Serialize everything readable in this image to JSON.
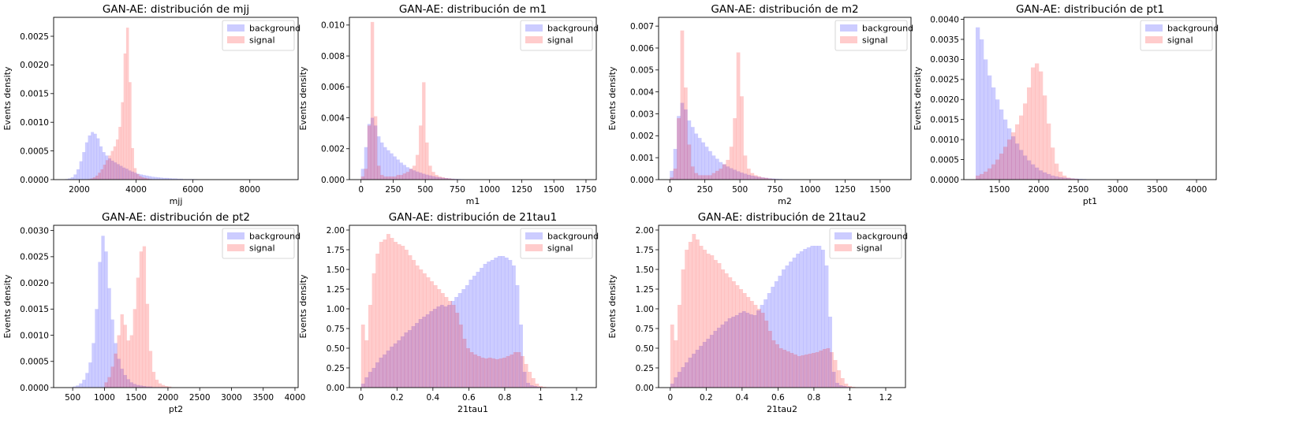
{
  "colors": {
    "background": "#0000ff",
    "signal": "#ff0000",
    "alpha": 0.2
  },
  "chart_data": [
    {
      "type": "histogram",
      "title": "GAN-AE: distribución de mjj",
      "xlabel": "mjj",
      "ylabel": "Events density",
      "xlim": [
        1100,
        9700
      ],
      "ylim": [
        0,
        0.00283
      ],
      "xticks": [
        2000,
        4000,
        6000,
        8000
      ],
      "yticks": [
        0.0,
        0.0005,
        0.001,
        0.0015,
        0.002,
        0.0025
      ],
      "yticklabels": [
        "0.0000",
        "0.0005",
        "0.0010",
        "0.0015",
        "0.0020",
        "0.0025"
      ],
      "legend": "top-right",
      "series": [
        {
          "name": "background",
          "color": "#0000ff",
          "edges": [
            1500,
            6550
          ],
          "values": [
            1e-05,
            2e-05,
            4e-05,
            9e-05,
            0.00018,
            0.00032,
            0.00048,
            0.00065,
            0.00077,
            0.00083,
            0.0008,
            0.00072,
            0.00058,
            0.00048,
            0.00042,
            0.00037,
            0.00033,
            0.0003,
            0.00027,
            0.00024,
            0.00021,
            0.00019,
            0.00016,
            0.00014,
            0.00012,
            0.0001,
            9e-05,
            8e-05,
            7e-05,
            6e-05,
            5e-05,
            4.5e-05,
            4e-05,
            3.5e-05,
            3e-05,
            3e-05,
            2.5e-05,
            2e-05,
            2e-05,
            1.5e-05,
            1.5e-05,
            1e-05,
            1e-05,
            1e-05,
            1e-05,
            8e-06,
            6e-06,
            5e-06,
            4e-06,
            3e-06
          ]
        },
        {
          "name": "signal",
          "color": "#ff0000",
          "edges": [
            2300,
            4550
          ],
          "values": [
            1e-05,
            2e-05,
            4e-05,
            7e-05,
            0.00012,
            0.00018,
            0.00026,
            0.00034,
            0.00042,
            0.0005,
            0.00058,
            0.0007,
            0.00092,
            0.00135,
            0.0022,
            0.00265,
            0.0017,
            0.00055,
            0.0002,
            0.0001,
            6e-05,
            4e-05,
            3e-05,
            2e-05,
            1e-05
          ]
        }
      ]
    },
    {
      "type": "histogram",
      "title": "GAN-AE: distribución de m1",
      "xlabel": "m1",
      "ylabel": "Events density",
      "xlim": [
        -90,
        1830
      ],
      "ylim": [
        0,
        0.0105
      ],
      "xticks": [
        0,
        250,
        500,
        750,
        1000,
        1250,
        1500,
        1750
      ],
      "yticks": [
        0.0,
        0.002,
        0.004,
        0.006,
        0.008,
        0.01
      ],
      "yticklabels": [
        "0.000",
        "0.002",
        "0.004",
        "0.006",
        "0.008",
        "0.010"
      ],
      "legend": "top-right",
      "series": [
        {
          "name": "background",
          "color": "#0000ff",
          "edges": [
            0,
            1000
          ],
          "values": [
            0.0007,
            0.0021,
            0.0036,
            0.004,
            0.0035,
            0.0028,
            0.0024,
            0.0021,
            0.0019,
            0.0017,
            0.0015,
            0.0013,
            0.0011,
            0.00095,
            0.0008,
            0.0007,
            0.0006,
            0.00052,
            0.00045,
            0.00038,
            0.00032,
            0.00027,
            0.00022,
            0.00018,
            0.00015,
            0.00012,
            0.0001,
            8e-05,
            6e-05,
            5e-05,
            4e-05,
            3e-05,
            2e-05,
            2e-05,
            1e-05,
            1e-05,
            1e-05,
            5e-06,
            5e-06,
            5e-06
          ]
        },
        {
          "name": "signal",
          "color": "#ff0000",
          "edges": [
            0,
            775
          ],
          "values": [
            0.0002,
            0.0007,
            0.0035,
            0.0102,
            0.0041,
            0.0009,
            0.0003,
            0.0002,
            0.0002,
            0.0002,
            0.0002,
            0.0003,
            0.0003,
            0.0004,
            0.0005,
            0.0007,
            0.0009,
            0.0016,
            0.0035,
            0.0063,
            0.0024,
            0.0009,
            0.0005,
            0.0003,
            0.0002,
            0.00015,
            0.0001,
            8e-05,
            5e-05,
            3e-05,
            2e-05
          ]
        }
      ]
    },
    {
      "type": "histogram",
      "title": "GAN-AE: distribución de m2",
      "xlabel": "m2",
      "ylabel": "Events density",
      "xlim": [
        -80,
        1720
      ],
      "ylim": [
        0,
        0.0074
      ],
      "xticks": [
        0,
        250,
        500,
        750,
        1000,
        1250,
        1500
      ],
      "yticks": [
        0.0,
        0.001,
        0.002,
        0.003,
        0.004,
        0.005,
        0.006,
        0.007
      ],
      "yticklabels": [
        "0.000",
        "0.001",
        "0.002",
        "0.003",
        "0.004",
        "0.005",
        "0.006",
        "0.007"
      ],
      "legend": "top-right",
      "series": [
        {
          "name": "background",
          "color": "#0000ff",
          "edges": [
            0,
            1000
          ],
          "values": [
            0.0004,
            0.0014,
            0.0029,
            0.0035,
            0.0032,
            0.0027,
            0.0024,
            0.0021,
            0.0019,
            0.0017,
            0.0015,
            0.0013,
            0.0011,
            0.00095,
            0.0008,
            0.0007,
            0.0006,
            0.00052,
            0.00045,
            0.00038,
            0.00032,
            0.00027,
            0.00022,
            0.00018,
            0.00015,
            0.00012,
            0.0001,
            8e-05,
            6e-05,
            5e-05,
            4e-05,
            3e-05,
            2e-05,
            2e-05,
            1e-05,
            1e-05,
            1e-05,
            5e-06,
            5e-06,
            5e-06
          ]
        },
        {
          "name": "signal",
          "color": "#ff0000",
          "edges": [
            0,
            775
          ],
          "values": [
            0.0001,
            0.0005,
            0.0028,
            0.0068,
            0.0042,
            0.0016,
            0.0006,
            0.0003,
            0.0002,
            0.0002,
            0.0002,
            0.0002,
            0.0003,
            0.0004,
            0.0005,
            0.0007,
            0.0009,
            0.0015,
            0.0028,
            0.0058,
            0.0038,
            0.0011,
            0.0005,
            0.0003,
            0.0002,
            0.00015,
            0.0001,
            8e-05,
            5e-05,
            3e-05,
            2e-05
          ]
        }
      ]
    },
    {
      "type": "histogram",
      "title": "GAN-AE: distribución de pt1",
      "xlabel": "pt1",
      "ylabel": "Events density",
      "xlim": [
        1050,
        4250
      ],
      "ylim": [
        0,
        0.00405
      ],
      "xticks": [
        1500,
        2000,
        2500,
        3000,
        3500,
        4000
      ],
      "yticks": [
        0.0,
        0.0005,
        0.001,
        0.0015,
        0.002,
        0.0025,
        0.003,
        0.0035,
        0.004
      ],
      "yticklabels": [
        "0.0000",
        "0.0005",
        "0.0010",
        "0.0015",
        "0.0020",
        "0.0025",
        "0.0030",
        "0.0035",
        "0.0040"
      ],
      "legend": "top-right",
      "series": [
        {
          "name": "background",
          "color": "#0000ff",
          "edges": [
            1200,
            2850
          ],
          "values": [
            0.0038,
            0.0035,
            0.003,
            0.0026,
            0.0023,
            0.002,
            0.00175,
            0.0015,
            0.00128,
            0.00108,
            0.0009,
            0.00074,
            0.0006,
            0.00048,
            0.00038,
            0.0003,
            0.00023,
            0.00018,
            0.00014,
            0.0001,
            8e-05,
            6e-05,
            5e-05,
            4e-05,
            3e-05,
            2.5e-05,
            2e-05,
            1.5e-05,
            1e-05,
            1e-05,
            8e-06,
            6e-06,
            5e-06
          ]
        },
        {
          "name": "signal",
          "color": "#ff0000",
          "edges": [
            1200,
            2500
          ],
          "values": [
            0.0001,
            0.00014,
            0.0002,
            0.00028,
            0.00038,
            0.0005,
            0.00065,
            0.00082,
            0.001,
            0.00118,
            0.00138,
            0.0016,
            0.0019,
            0.0023,
            0.0028,
            0.0029,
            0.0027,
            0.0021,
            0.0014,
            0.0008,
            0.0004,
            0.0002,
            0.0001,
            5e-05,
            3e-05,
            2e-05
          ]
        }
      ]
    },
    {
      "type": "histogram",
      "title": "GAN-AE: distribución de pt2",
      "xlabel": "pt2",
      "ylabel": "Events density",
      "xlim": [
        200,
        4050
      ],
      "ylim": [
        0,
        0.0031
      ],
      "xticks": [
        500,
        1000,
        1500,
        2000,
        2500,
        3000,
        3500,
        4000
      ],
      "yticks": [
        0.0,
        0.0005,
        0.001,
        0.0015,
        0.002,
        0.0025,
        0.003
      ],
      "yticklabels": [
        "0.0000",
        "0.0005",
        "0.0010",
        "0.0015",
        "0.0020",
        "0.0025",
        "0.0030"
      ],
      "legend": "top-right",
      "series": [
        {
          "name": "background",
          "color": "#0000ff",
          "edges": [
            500,
            2500
          ],
          "values": [
            2e-05,
            4e-05,
            8e-05,
            0.00015,
            0.00028,
            0.00048,
            0.00085,
            0.0015,
            0.0024,
            0.0029,
            0.0026,
            0.0019,
            0.0013,
            0.00085,
            0.00055,
            0.00036,
            0.00024,
            0.00016,
            0.0001,
            7e-05,
            5e-05,
            4e-05,
            3e-05,
            2e-05,
            2e-05,
            1e-05,
            1e-05,
            1e-05,
            1e-05,
            5e-06,
            5e-06,
            5e-06,
            5e-06,
            3e-06,
            3e-06,
            3e-06,
            2e-06,
            2e-06,
            2e-06,
            2e-06
          ]
        },
        {
          "name": "signal",
          "color": "#ff0000",
          "edges": [
            1000,
            2050
          ],
          "values": [
            0.0001,
            0.0002,
            0.0004,
            0.00065,
            0.001,
            0.0014,
            0.0012,
            0.0009,
            0.001,
            0.0015,
            0.0021,
            0.0026,
            0.0027,
            0.0016,
            0.0007,
            0.0003,
            0.00015,
            8e-05,
            5e-05,
            3e-05,
            2e-05
          ]
        }
      ]
    },
    {
      "type": "histogram",
      "title": "GAN-AE: distribución de 21tau1",
      "xlabel": "21tau1",
      "ylabel": "Events density",
      "xlim": [
        -0.065,
        1.31
      ],
      "ylim": [
        0,
        2.06
      ],
      "xticks": [
        0.0,
        0.2,
        0.4,
        0.6,
        0.8,
        1.0,
        1.2
      ],
      "yticks": [
        0.0,
        0.25,
        0.5,
        0.75,
        1.0,
        1.25,
        1.5,
        1.75,
        2.0
      ],
      "yticklabels": [
        "0.00",
        "0.25",
        "0.50",
        "0.75",
        "1.00",
        "1.25",
        "1.50",
        "1.75",
        "2.00"
      ],
      "legend": "top-right",
      "series": [
        {
          "name": "background",
          "color": "#0000ff",
          "edges": [
            0,
            1.1
          ],
          "values": [
            0.05,
            0.13,
            0.2,
            0.25,
            0.32,
            0.38,
            0.42,
            0.47,
            0.52,
            0.56,
            0.6,
            0.65,
            0.7,
            0.73,
            0.78,
            0.82,
            0.87,
            0.9,
            0.93,
            0.97,
            1.0,
            1.03,
            1.05,
            1.03,
            1.05,
            1.1,
            1.15,
            1.2,
            1.25,
            1.3,
            1.37,
            1.42,
            1.47,
            1.52,
            1.57,
            1.6,
            1.62,
            1.65,
            1.67,
            1.67,
            1.65,
            1.62,
            1.55,
            1.3,
            0.8,
            0.2,
            0.06,
            0.03,
            0.02,
            0.01,
            0.005,
            0.005,
            0.005,
            0.003,
            0.003
          ]
        },
        {
          "name": "signal",
          "color": "#ff0000",
          "edges": [
            0,
            1.05
          ],
          "values": [
            0.8,
            0.6,
            1.05,
            1.45,
            1.7,
            1.85,
            1.88,
            1.95,
            1.9,
            1.85,
            1.82,
            1.8,
            1.75,
            1.68,
            1.62,
            1.55,
            1.5,
            1.45,
            1.4,
            1.35,
            1.3,
            1.25,
            1.2,
            1.15,
            1.1,
            1.05,
            0.95,
            0.8,
            0.62,
            0.5,
            0.45,
            0.42,
            0.4,
            0.38,
            0.37,
            0.38,
            0.37,
            0.36,
            0.37,
            0.38,
            0.4,
            0.42,
            0.45,
            0.45,
            0.4,
            0.3,
            0.2,
            0.12,
            0.05,
            0.02,
            0.01,
            0.005
          ]
        }
      ]
    },
    {
      "type": "histogram",
      "title": "GAN-AE: distribución de 21tau2",
      "xlabel": "21tau2",
      "ylabel": "Events density",
      "xlim": [
        -0.065,
        1.31
      ],
      "ylim": [
        0,
        2.06
      ],
      "xticks": [
        0.0,
        0.2,
        0.4,
        0.6,
        0.8,
        1.0,
        1.2
      ],
      "yticks": [
        0.0,
        0.25,
        0.5,
        0.75,
        1.0,
        1.25,
        1.5,
        1.75,
        2.0
      ],
      "yticklabels": [
        "0.00",
        "0.25",
        "0.50",
        "0.75",
        "1.00",
        "1.25",
        "1.50",
        "1.75",
        "2.00"
      ],
      "legend": "top-right",
      "series": [
        {
          "name": "background",
          "color": "#0000ff",
          "edges": [
            0,
            1.1
          ],
          "values": [
            0.05,
            0.13,
            0.2,
            0.26,
            0.32,
            0.38,
            0.43,
            0.48,
            0.53,
            0.58,
            0.62,
            0.67,
            0.72,
            0.76,
            0.8,
            0.84,
            0.88,
            0.9,
            0.92,
            0.95,
            0.97,
            0.95,
            0.93,
            0.92,
            0.98,
            1.05,
            1.12,
            1.2,
            1.28,
            1.35,
            1.42,
            1.5,
            1.55,
            1.6,
            1.65,
            1.7,
            1.73,
            1.76,
            1.78,
            1.8,
            1.8,
            1.8,
            1.75,
            1.55,
            0.9,
            0.2,
            0.06,
            0.03,
            0.02,
            0.01,
            0.005,
            0.005,
            0.005,
            0.003,
            0.003
          ]
        },
        {
          "name": "signal",
          "color": "#ff0000",
          "edges": [
            0,
            1.05
          ],
          "values": [
            0.8,
            0.6,
            1.05,
            1.5,
            1.75,
            1.85,
            1.95,
            1.88,
            1.8,
            1.75,
            1.7,
            1.68,
            1.62,
            1.58,
            1.5,
            1.45,
            1.4,
            1.35,
            1.3,
            1.25,
            1.2,
            1.15,
            1.1,
            1.05,
            1.0,
            0.95,
            0.85,
            0.72,
            0.6,
            0.55,
            0.5,
            0.48,
            0.46,
            0.44,
            0.42,
            0.4,
            0.41,
            0.42,
            0.43,
            0.44,
            0.45,
            0.47,
            0.49,
            0.5,
            0.45,
            0.35,
            0.22,
            0.12,
            0.05,
            0.02,
            0.01,
            0.005
          ]
        }
      ]
    }
  ]
}
